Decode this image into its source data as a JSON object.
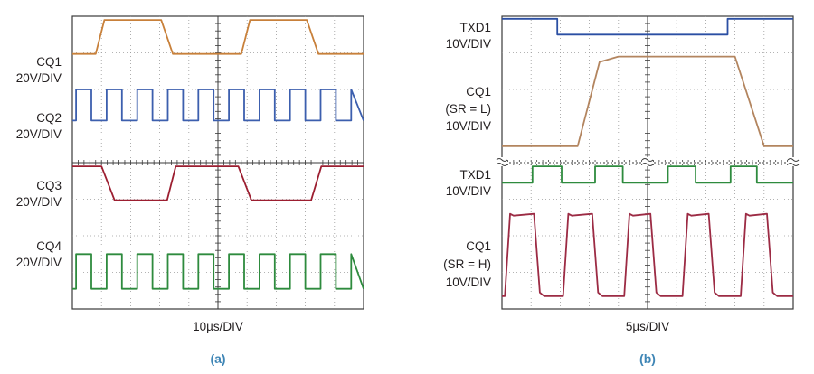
{
  "panels": [
    {
      "id": "a",
      "caption": "(a)",
      "xlabel": "10µs/DIV",
      "grid": {
        "x_divisions": 10,
        "y_divisions": 8
      },
      "channels": [
        {
          "name": "CQ1",
          "scale": "20V/DIV",
          "color": "#c8803a"
        },
        {
          "name": "CQ2",
          "scale": "20V/DIV",
          "color": "#3c5fae"
        },
        {
          "name": "CQ3",
          "scale": "20V/DIV",
          "color": "#9c1e30"
        },
        {
          "name": "CQ4",
          "scale": "20V/DIV",
          "color": "#2e8b3e"
        }
      ]
    },
    {
      "id": "b",
      "caption": "(b)",
      "xlabel": "5µs/DIV",
      "grid": {
        "x_divisions": 10,
        "y_divisions": 8
      },
      "channels": [
        {
          "name": "TXD1",
          "scale": "10V/DIV",
          "color": "#2b4fa3"
        },
        {
          "name": "CQ1",
          "condition": "(SR = L)",
          "scale": "10V/DIV",
          "color": "#b3855f"
        },
        {
          "name": "TXD1",
          "scale": "10V/DIV",
          "color": "#2e8b3e"
        },
        {
          "name": "CQ1",
          "condition": "(SR = H)",
          "scale": "10V/DIV",
          "color": "#9c2b44"
        }
      ]
    }
  ],
  "chart_data": [
    {
      "type": "line",
      "panel": "a",
      "xlabel": "10µs/DIV",
      "x_unit": "div",
      "xlim": [
        0,
        10
      ],
      "y_unit": "div",
      "ylim": [
        0,
        8
      ],
      "series": [
        {
          "name": "CQ1",
          "x": [
            0,
            0.8,
            1.1,
            3.05,
            3.45,
            5.8,
            6.1,
            8.05,
            8.45,
            10
          ],
          "y": [
            6.97,
            6.97,
            7.9,
            7.9,
            6.97,
            6.97,
            7.9,
            7.9,
            6.97,
            6.97
          ]
        },
        {
          "name": "CQ2",
          "pattern": "square",
          "period": 1.05,
          "duty": 0.5,
          "low": 5.15,
          "high": 6.0
        },
        {
          "name": "CQ3",
          "x": [
            0,
            1.0,
            1.45,
            3.25,
            3.55,
            5.7,
            6.15,
            8.2,
            8.55,
            10
          ],
          "y": [
            3.9,
            3.9,
            2.97,
            2.97,
            3.9,
            3.9,
            2.97,
            2.97,
            3.9,
            3.9
          ]
        },
        {
          "name": "CQ4",
          "pattern": "square",
          "period": 1.05,
          "duty": 0.5,
          "low": 0.55,
          "high": 1.5
        }
      ]
    },
    {
      "type": "line",
      "panel": "b",
      "xlabel": "5µs/DIV",
      "x_unit": "div",
      "xlim": [
        0,
        10
      ],
      "y_unit": "div",
      "ylim": [
        0,
        8
      ],
      "series": [
        {
          "name": "TXD1",
          "x": [
            0,
            1.9,
            1.9,
            7.75,
            7.75,
            10
          ],
          "y": [
            7.93,
            7.93,
            7.5,
            7.5,
            7.93,
            7.93
          ]
        },
        {
          "name": "CQ1 (SR = L)",
          "x": [
            0,
            2.6,
            3.35,
            4.0,
            8.0,
            9.0,
            10
          ],
          "y": [
            4.45,
            4.45,
            6.75,
            6.9,
            6.9,
            4.45,
            4.45
          ]
        },
        {
          "name": "TXD1",
          "x": [
            0,
            1.05,
            1.05,
            2.05,
            2.05,
            3.2,
            3.2,
            4.15,
            4.15,
            5.7,
            5.7,
            6.65,
            6.65,
            7.85,
            7.85,
            8.75,
            8.75,
            10
          ],
          "y": [
            3.45,
            3.45,
            3.9,
            3.9,
            3.45,
            3.45,
            3.9,
            3.9,
            3.45,
            3.45,
            3.9,
            3.9,
            3.45,
            3.45,
            3.9,
            3.9,
            3.45,
            3.45
          ]
        },
        {
          "name": "CQ1 (SR = H)",
          "pattern": "pulse",
          "periods": [
            [
              0.1,
              1.2
            ],
            [
              2.1,
              3.2
            ],
            [
              4.2,
              5.2
            ],
            [
              6.2,
              7.2
            ],
            [
              8.2,
              9.2
            ]
          ],
          "low": 0.35,
          "high": 2.6
        }
      ]
    }
  ]
}
